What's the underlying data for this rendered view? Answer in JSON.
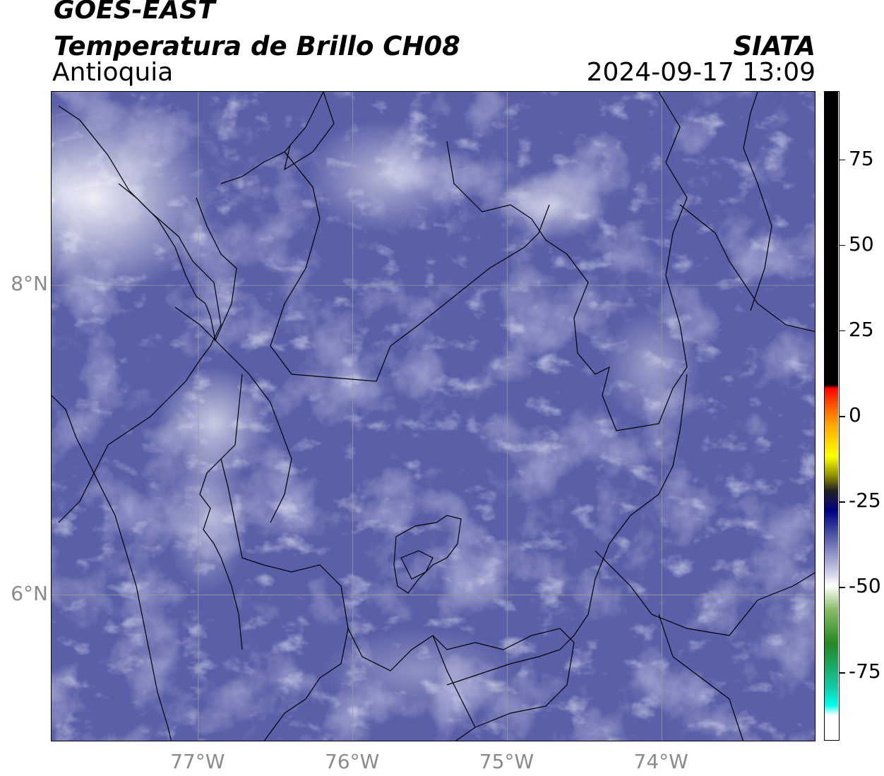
{
  "header": {
    "satellite": "GOES-EAST",
    "product": "Temperatura de Brillo CH08",
    "region": "Antioquia",
    "organization": "SIATA",
    "timestamp": "2024-09-17 13:09"
  },
  "map": {
    "lon_range": [
      -77.95,
      -73.0
    ],
    "lat_range": [
      5.05,
      9.25
    ],
    "lat_ticks": [
      {
        "value": 8,
        "label": "8°N"
      },
      {
        "value": 6,
        "label": "6°N"
      }
    ],
    "lon_ticks": [
      {
        "value": -77,
        "label": "77°W"
      },
      {
        "value": -76,
        "label": "76°W"
      },
      {
        "value": -75,
        "label": "75°W"
      },
      {
        "value": -74,
        "label": "74°W"
      }
    ],
    "gridlines": true
  },
  "colorbar": {
    "range": [
      -95,
      95
    ],
    "ticks": [
      {
        "value": 75,
        "label": "75"
      },
      {
        "value": 50,
        "label": "50"
      },
      {
        "value": 25,
        "label": "25"
      },
      {
        "value": 0,
        "label": "0"
      },
      {
        "value": -25,
        "label": "-25"
      },
      {
        "value": -50,
        "label": "-50"
      },
      {
        "value": -75,
        "label": "-75"
      }
    ],
    "stops": [
      {
        "value": 95,
        "color": "#000000"
      },
      {
        "value": 9,
        "color": "#000000"
      },
      {
        "value": 8,
        "color": "#ff0000"
      },
      {
        "value": 3,
        "color": "#ff5500"
      },
      {
        "value": -3,
        "color": "#ffaa00"
      },
      {
        "value": -12,
        "color": "#ffff00"
      },
      {
        "value": -18,
        "color": "#888800"
      },
      {
        "value": -22,
        "color": "#222222"
      },
      {
        "value": -28,
        "color": "#000088"
      },
      {
        "value": -35,
        "color": "#4e55a5"
      },
      {
        "value": -45,
        "color": "#c0c4e2"
      },
      {
        "value": -50,
        "color": "#ffffff"
      },
      {
        "value": -57,
        "color": "#88bb66"
      },
      {
        "value": -67,
        "color": "#228822"
      },
      {
        "value": -80,
        "color": "#11ccaa"
      },
      {
        "value": -85,
        "color": "#00ffee"
      },
      {
        "value": -88,
        "color": "#ffffff"
      }
    ]
  }
}
